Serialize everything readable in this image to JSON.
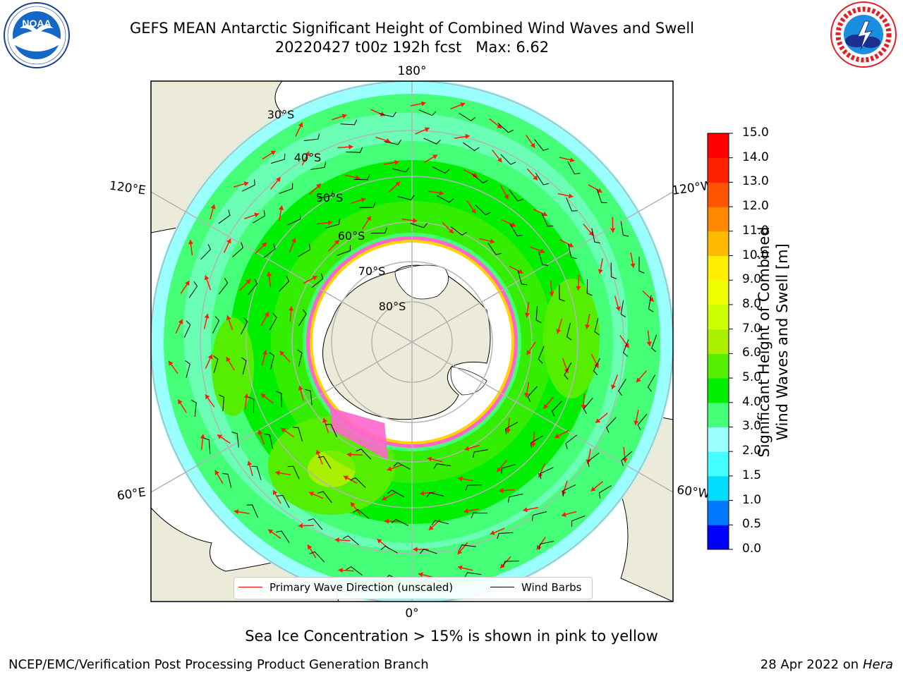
{
  "title": {
    "line1": "GEFS MEAN Antarctic Significant Height of Combined Wind Waves and Swell",
    "line2": "20220427 t00z 192h fcst   Max: 6.62"
  },
  "logos": {
    "left": {
      "icon": "noaa-logo",
      "text": "NOAA",
      "ring_text": "NATIONAL OCEANIC AND ATMOSPHERIC ADMINISTRATION · U.S. DEPARTMENT OF COMMERCE"
    },
    "right": {
      "icon": "nws-logo",
      "ring_text": "NATIONAL WEATHER SERVICE"
    }
  },
  "map": {
    "projection": "south-polar-stereographic",
    "longitude_labels": {
      "top": "180°",
      "bottom": "0°",
      "left_upper": "120°E",
      "left_lower": "60°E",
      "right_upper": "120°W",
      "right_lower": "60°W"
    },
    "latitude_labels": [
      "30°S",
      "40°S",
      "50°S",
      "60°S",
      "70°S",
      "80°S"
    ],
    "colors": {
      "land": "#ecead8",
      "ice_shelf": "#ffffff",
      "sea_ice": "#ff66cc",
      "arrow": "#ff1a00",
      "barb": "#000000",
      "grid": "#b4b4b4"
    }
  },
  "legend": {
    "items": [
      {
        "label": "Primary Wave Direction (unscaled)",
        "color": "#ff0000"
      },
      {
        "label": "Wind Barbs",
        "color": "#000000"
      }
    ]
  },
  "colorbar": {
    "label_line1": "Significant Height of Combined",
    "label_line2": "Wind Waves and Swell [m]",
    "ticks": [
      "0.0",
      "0.5",
      "1.0",
      "1.5",
      "2.0",
      "3.0",
      "4.0",
      "5.0",
      "6.0",
      "7.0",
      "8.0",
      "9.0",
      "10.0",
      "11.0",
      "12.0",
      "13.0",
      "14.0",
      "15.0"
    ],
    "colors": [
      "#0000ff",
      "#0077ff",
      "#00ddff",
      "#44ffff",
      "#99ffff",
      "#44ff77",
      "#00ee00",
      "#55ee00",
      "#aaee00",
      "#ccff00",
      "#eeff00",
      "#ffee00",
      "#ffbb00",
      "#ff8800",
      "#ff5500",
      "#ff2200",
      "#ff0000"
    ]
  },
  "caption": "Sea Ice Concentration > 15% is shown in pink to yellow",
  "footer": {
    "left": "NCEP/EMC/Verification Post Processing Product Generation Branch",
    "right_prefix": "28 Apr 2022 on ",
    "right_host": "Hera"
  }
}
